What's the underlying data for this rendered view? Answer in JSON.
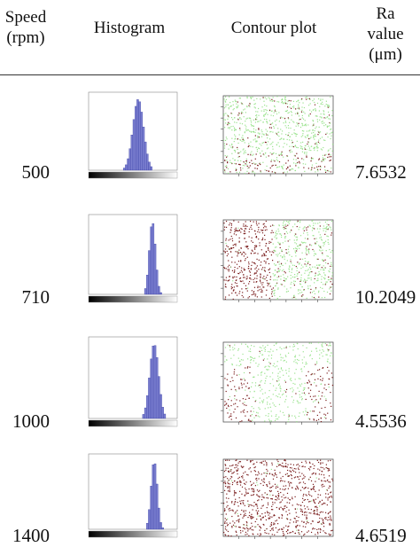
{
  "table": {
    "headers": {
      "speed": [
        "Speed",
        "(rpm)"
      ],
      "histogram": "Histogram",
      "contour": "Contour plot",
      "ra": [
        "Ra",
        "value",
        "(μm)"
      ]
    },
    "rows": [
      {
        "speed": "500",
        "ra": "7.6532",
        "contour_mix": 0.9,
        "contour_style": "speckle",
        "hist_peak": 0.56,
        "hist_width": 0.06
      },
      {
        "speed": "710",
        "ra": "10.2049",
        "contour_mix": 0.35,
        "contour_style": "arcs-left",
        "hist_peak": 0.72,
        "hist_width": 0.035
      },
      {
        "speed": "1000",
        "ra": "4.5536",
        "contour_mix": 0.85,
        "contour_style": "band",
        "hist_peak": 0.74,
        "hist_width": 0.05
      },
      {
        "speed": "1400",
        "ra": "4.6519",
        "contour_mix": 0.1,
        "contour_style": "arcs-full",
        "hist_peak": 0.74,
        "hist_width": 0.035
      }
    ]
  },
  "colors": {
    "hist_bar": "#7b7fd0",
    "hist_edge": "#2a2f9a",
    "contour_green": "#9be38f",
    "contour_dark": "#7a1d1d",
    "rule": "#333333"
  }
}
